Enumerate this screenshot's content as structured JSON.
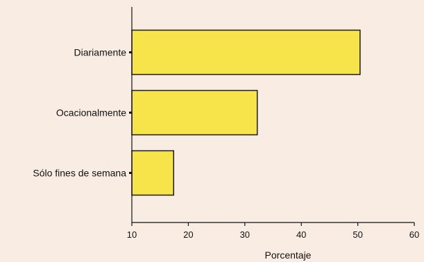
{
  "chart_data": {
    "type": "bar",
    "orientation": "horizontal",
    "categories": [
      "Diariamente",
      "Ocacionalmente",
      "Sólo fines de semana"
    ],
    "values": [
      50.4,
      32.2,
      17.4
    ],
    "title": "",
    "xlabel": "Porcentaje",
    "ylabel": "",
    "xlim": [
      10,
      60
    ],
    "xticks": [
      "10",
      "20",
      "30",
      "40",
      "50",
      "60"
    ],
    "grid": false,
    "bar_color": "#f7e34a",
    "bar_edge_color": "#1a1a1a",
    "background_color": "#f9ede3"
  }
}
